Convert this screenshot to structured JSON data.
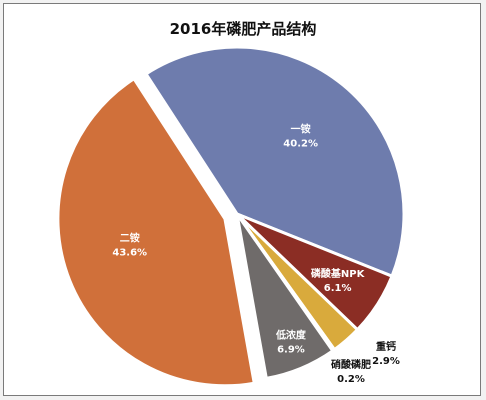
{
  "chart_data": {
    "type": "pie",
    "title": "2016年磷肥产品结构",
    "slices": [
      {
        "name": "一铵",
        "value": 40.2,
        "label": "40.2%",
        "color": "#6e7cad",
        "text_color": "#ffffff"
      },
      {
        "name": "磷酸基NPK",
        "value": 6.1,
        "label": "6.1%",
        "color": "#8b2d24",
        "text_color": "#ffffff"
      },
      {
        "name": "重钙",
        "value": 2.9,
        "label": "2.9%",
        "color": "#d9aa3c",
        "text_color": "#111111"
      },
      {
        "name": "硝酸磷肥",
        "value": 0.2,
        "label": "0.2%",
        "color": "#4a7fa0",
        "text_color": "#111111"
      },
      {
        "name": "低浓度",
        "value": 6.9,
        "label": "6.9%",
        "color": "#6f6b6a",
        "text_color": "#ffffff"
      },
      {
        "name": "二铵",
        "value": 43.6,
        "label": "43.6%",
        "color": "#d0703a",
        "text_color": "#ffffff"
      }
    ]
  }
}
